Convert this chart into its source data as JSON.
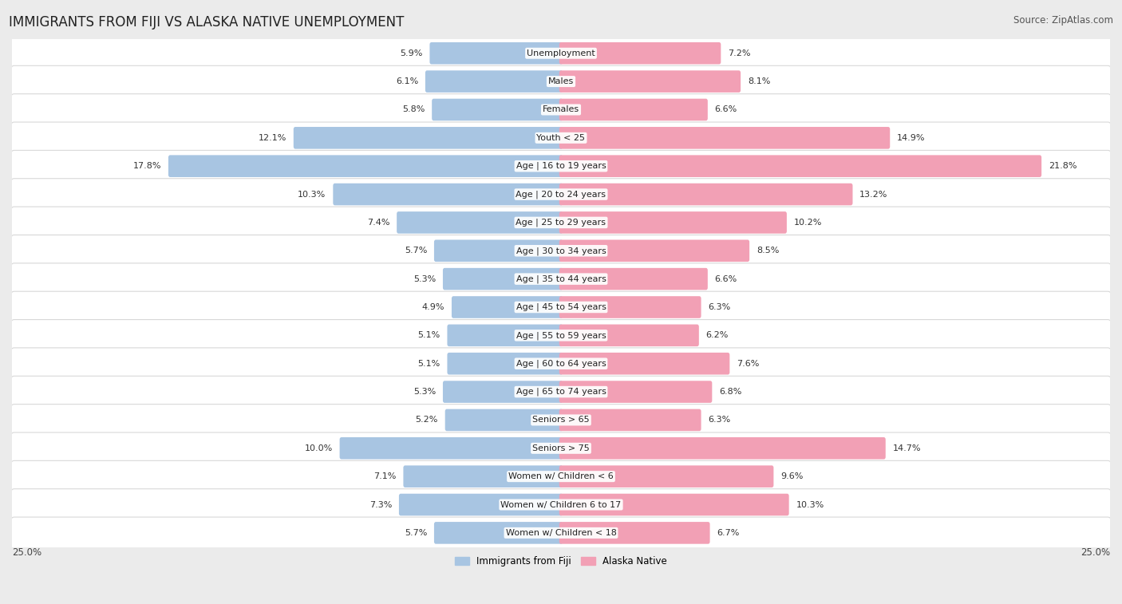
{
  "title": "IMMIGRANTS FROM FIJI VS ALASKA NATIVE UNEMPLOYMENT",
  "source": "Source: ZipAtlas.com",
  "categories": [
    "Unemployment",
    "Males",
    "Females",
    "Youth < 25",
    "Age | 16 to 19 years",
    "Age | 20 to 24 years",
    "Age | 25 to 29 years",
    "Age | 30 to 34 years",
    "Age | 35 to 44 years",
    "Age | 45 to 54 years",
    "Age | 55 to 59 years",
    "Age | 60 to 64 years",
    "Age | 65 to 74 years",
    "Seniors > 65",
    "Seniors > 75",
    "Women w/ Children < 6",
    "Women w/ Children 6 to 17",
    "Women w/ Children < 18"
  ],
  "fiji_values": [
    5.9,
    6.1,
    5.8,
    12.1,
    17.8,
    10.3,
    7.4,
    5.7,
    5.3,
    4.9,
    5.1,
    5.1,
    5.3,
    5.2,
    10.0,
    7.1,
    7.3,
    5.7
  ],
  "alaska_values": [
    7.2,
    8.1,
    6.6,
    14.9,
    21.8,
    13.2,
    10.2,
    8.5,
    6.6,
    6.3,
    6.2,
    7.6,
    6.8,
    6.3,
    14.7,
    9.6,
    10.3,
    6.7
  ],
  "fiji_color": "#a8c5e2",
  "alaska_color": "#f2a0b5",
  "max_value": 25.0,
  "bg_color": "#ebebeb",
  "row_bg_color": "#ffffff",
  "row_border_color": "#d8d8d8",
  "legend_fiji": "Immigrants from Fiji",
  "legend_alaska": "Alaska Native",
  "title_fontsize": 12,
  "source_fontsize": 8.5,
  "label_fontsize": 8,
  "value_fontsize": 8,
  "axis_label_fontsize": 8.5
}
